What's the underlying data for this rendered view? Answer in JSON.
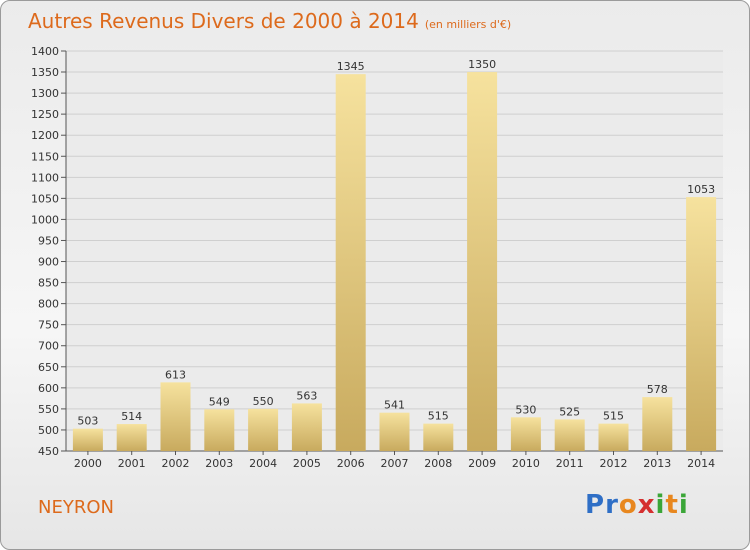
{
  "header": {
    "title": "Autres Revenus Divers de 2000 à 2014",
    "subtitle": "(en milliers d'€)"
  },
  "footer": {
    "commune": "NEYRON",
    "logo_letters": [
      "P",
      "r",
      "o",
      "x",
      "i",
      "t",
      "i"
    ]
  },
  "colors": {
    "title": "#dd6a1c",
    "bar_light": "#f6e29e",
    "bar_dark": "#c8aa5e",
    "logo": [
      "#2f6fc6",
      "#2f6fc6",
      "#e8871e",
      "#d52f2f",
      "#3ba638",
      "#e8871e",
      "#3ba638"
    ]
  },
  "chart_data": {
    "type": "bar",
    "categories": [
      "2000",
      "2001",
      "2002",
      "2003",
      "2004",
      "2005",
      "2006",
      "2007",
      "2008",
      "2009",
      "2010",
      "2011",
      "2012",
      "2013",
      "2014"
    ],
    "values": [
      503,
      514,
      613,
      549,
      550,
      563,
      1345,
      541,
      515,
      1350,
      530,
      525,
      515,
      578,
      1053
    ],
    "ylim": [
      450,
      1400
    ],
    "yticks": [
      450,
      500,
      550,
      600,
      650,
      700,
      750,
      800,
      850,
      900,
      950,
      1000,
      1050,
      1100,
      1150,
      1200,
      1250,
      1300,
      1350,
      1400
    ],
    "grid": true,
    "xlabel": "",
    "ylabel": ""
  }
}
